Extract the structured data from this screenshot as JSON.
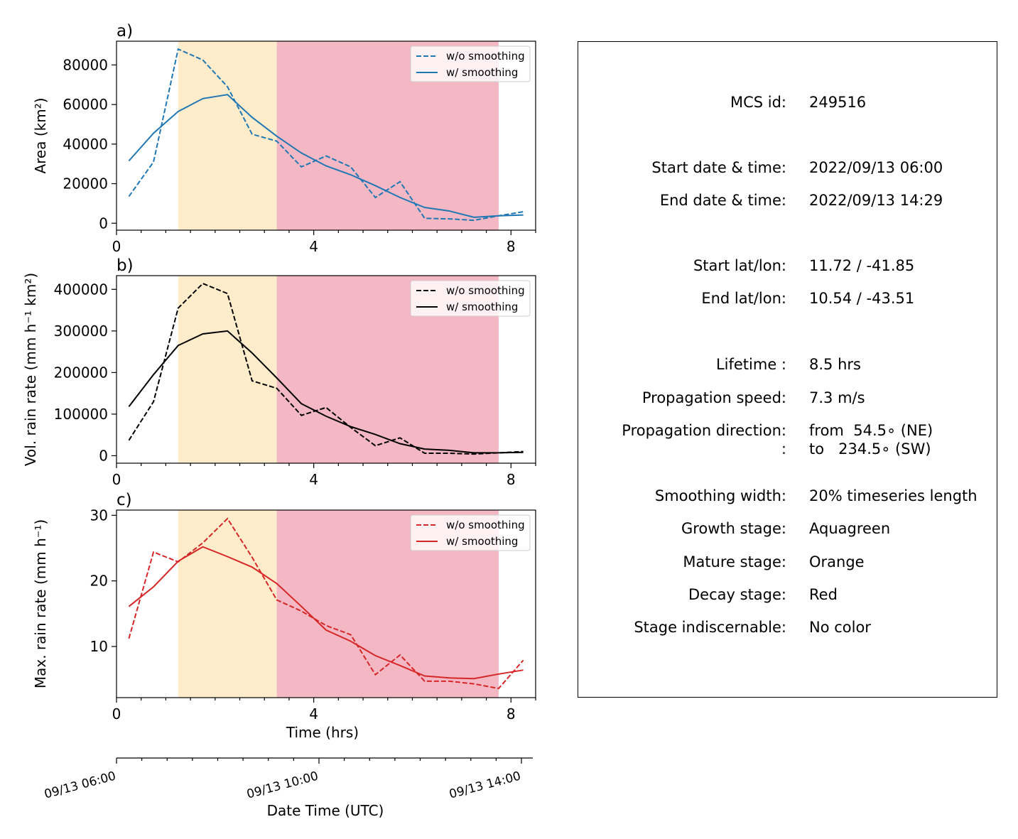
{
  "chart_data": [
    {
      "type": "line",
      "panel_label": "a)",
      "ylabel": "Area  (km²)",
      "x": [
        0.25,
        0.75,
        1.25,
        1.75,
        2.25,
        2.75,
        3.25,
        3.75,
        4.25,
        4.75,
        5.25,
        5.75,
        6.25,
        6.75,
        7.25,
        7.75,
        8.25
      ],
      "series": [
        {
          "name": "w/o smoothing",
          "style": "dashed",
          "color": "#1f77b4",
          "values": [
            13500,
            31000,
            88000,
            82500,
            69000,
            45000,
            41500,
            28500,
            34000,
            28500,
            13000,
            21000,
            2500,
            2200,
            1500,
            3800,
            5800
          ]
        },
        {
          "name": "w/ smoothing",
          "style": "solid",
          "color": "#1f77b4",
          "values": [
            31500,
            45500,
            56500,
            63000,
            65000,
            53500,
            44000,
            35500,
            29000,
            24500,
            19000,
            13000,
            8000,
            6200,
            3000,
            3800,
            4200
          ]
        }
      ],
      "xlim": [
        0,
        8.5
      ],
      "ylim": [
        -3500,
        92000
      ],
      "xticks": [
        "0",
        "4",
        "8"
      ],
      "yticks": [
        "0",
        "20000",
        "40000",
        "60000",
        "80000"
      ],
      "legend": "top-right"
    },
    {
      "type": "line",
      "panel_label": "b)",
      "ylabel": "Vol. rain rate (mm h⁻¹ km²)",
      "x": [
        0.25,
        0.75,
        1.25,
        1.75,
        2.25,
        2.75,
        3.25,
        3.75,
        4.25,
        4.75,
        5.25,
        5.75,
        6.25,
        6.75,
        7.25,
        7.75,
        8.25
      ],
      "series": [
        {
          "name": "w/o smoothing",
          "style": "dashed",
          "color": "#000000",
          "values": [
            37000,
            130000,
            355000,
            414000,
            390000,
            180000,
            162000,
            97000,
            116000,
            68000,
            24000,
            43000,
            6000,
            6000,
            4000,
            7000,
            10000
          ]
        },
        {
          "name": "w/ smoothing",
          "style": "solid",
          "color": "#000000",
          "values": [
            118000,
            195000,
            265000,
            293000,
            300000,
            247000,
            187000,
            125000,
            95000,
            70000,
            51000,
            29000,
            16000,
            13000,
            7000,
            7000,
            8000
          ]
        }
      ],
      "xlim": [
        0,
        8.5
      ],
      "ylim": [
        -18000,
        433000
      ],
      "xticks": [
        "0",
        "4",
        "8"
      ],
      "yticks": [
        "0",
        "100000",
        "200000",
        "300000",
        "400000"
      ],
      "legend": "top-right"
    },
    {
      "type": "line",
      "panel_label": "c)",
      "ylabel": "Max. rain rate  (mm h⁻¹)",
      "xlabel": "Time (hrs)",
      "x": [
        0.25,
        0.75,
        1.25,
        1.75,
        2.25,
        2.75,
        3.25,
        3.75,
        4.25,
        4.75,
        5.25,
        5.75,
        6.25,
        6.75,
        7.25,
        7.75,
        8.25
      ],
      "series": [
        {
          "name": "w/o smoothing",
          "style": "dashed",
          "color": "#d62728",
          "values": [
            11.2,
            24.4,
            22.9,
            25.8,
            29.5,
            23.6,
            17.1,
            15.4,
            13.2,
            11.8,
            5.7,
            8.7,
            4.7,
            4.7,
            4.3,
            3.6,
            7.9
          ]
        },
        {
          "name": "w/ smoothing",
          "style": "solid",
          "color": "#d62728",
          "values": [
            16.1,
            19.1,
            23.0,
            25.2,
            23.7,
            22.1,
            19.6,
            16.1,
            12.5,
            10.8,
            8.6,
            7.1,
            5.5,
            5.2,
            5.1,
            5.8,
            6.4
          ]
        }
      ],
      "xlim": [
        0,
        8.5
      ],
      "ylim": [
        2.2,
        30.8
      ],
      "xticks": [
        "0",
        "4",
        "8"
      ],
      "yticks": [
        "10",
        "20",
        "30"
      ],
      "legend": "top-right"
    }
  ],
  "stages": [
    {
      "name": "mature",
      "x0": 1.25,
      "x1": 3.25,
      "color": "#ffeccb"
    },
    {
      "name": "decay",
      "x0": 3.25,
      "x1": 7.75,
      "color": "#f4b8c5"
    }
  ],
  "datetime_axis": {
    "label": "Date Time (UTC)",
    "ticks": [
      "09/13 06:00",
      "09/13 10:00",
      "09/13 14:00"
    ]
  },
  "info": {
    "rows": [
      {
        "label": "MCS id:",
        "value": "249516"
      },
      {
        "label": "Start date & time:",
        "value": "2022/09/13 06:00"
      },
      {
        "label": "End date & time:",
        "value": "2022/09/13 14:29"
      },
      {
        "label": "Start lat/lon:",
        "value": "11.72 / -41.85"
      },
      {
        "label": "End lat/lon:",
        "value": "10.54 / -43.51"
      },
      {
        "label": "Lifetime :",
        "value": "8.5 hrs"
      },
      {
        "label": "Propagation speed:",
        "value": "7.3 m/s"
      },
      {
        "label": "Propagation direction:",
        "value": "from  54.5∘ (NE)",
        "label2": ":",
        "value2": "to   234.5∘ (SW)"
      },
      {
        "label": "Smoothing width:",
        "value": "20% timeseries length"
      },
      {
        "label": "Growth stage:",
        "value": "Aquagreen"
      },
      {
        "label": "Mature stage:",
        "value": "Orange"
      },
      {
        "label": "Decay stage:",
        "value": "Red"
      },
      {
        "label": "Stage indiscernable:",
        "value": "No color"
      }
    ]
  }
}
